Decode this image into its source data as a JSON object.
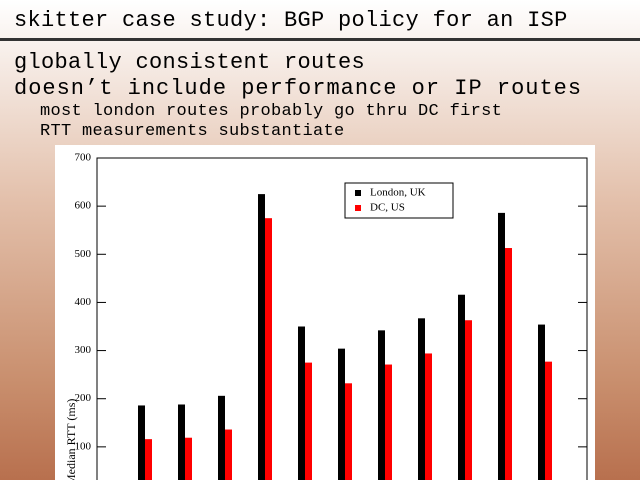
{
  "slide": {
    "title": "skitter case study: BGP policy for an ISP",
    "bullets": [
      "globally consistent routes",
      "doesn’t include performance or IP routes"
    ],
    "subbullets": [
      "most london routes probably go thru DC first",
      "RTT measurements substantiate"
    ]
  },
  "chart_data": {
    "type": "bar",
    "ylabel": "Median RTT (ms)",
    "categories": [
      null,
      null,
      null,
      null,
      null,
      null,
      null,
      null,
      null,
      null,
      null
    ],
    "series": [
      {
        "name": "London, UK",
        "color": "#000000",
        "values": [
          186,
          188,
          206,
          625,
          350,
          304,
          342,
          367,
          416,
          586,
          354
        ]
      },
      {
        "name": "DC, US",
        "color": "#ff0000",
        "values": [
          116,
          119,
          136,
          575,
          275,
          232,
          271,
          294,
          363,
          513,
          277
        ]
      }
    ],
    "ylim": [
      0,
      700
    ],
    "yticks": [
      100,
      200,
      300,
      400,
      500,
      600,
      700
    ],
    "legend": "upper-center"
  }
}
